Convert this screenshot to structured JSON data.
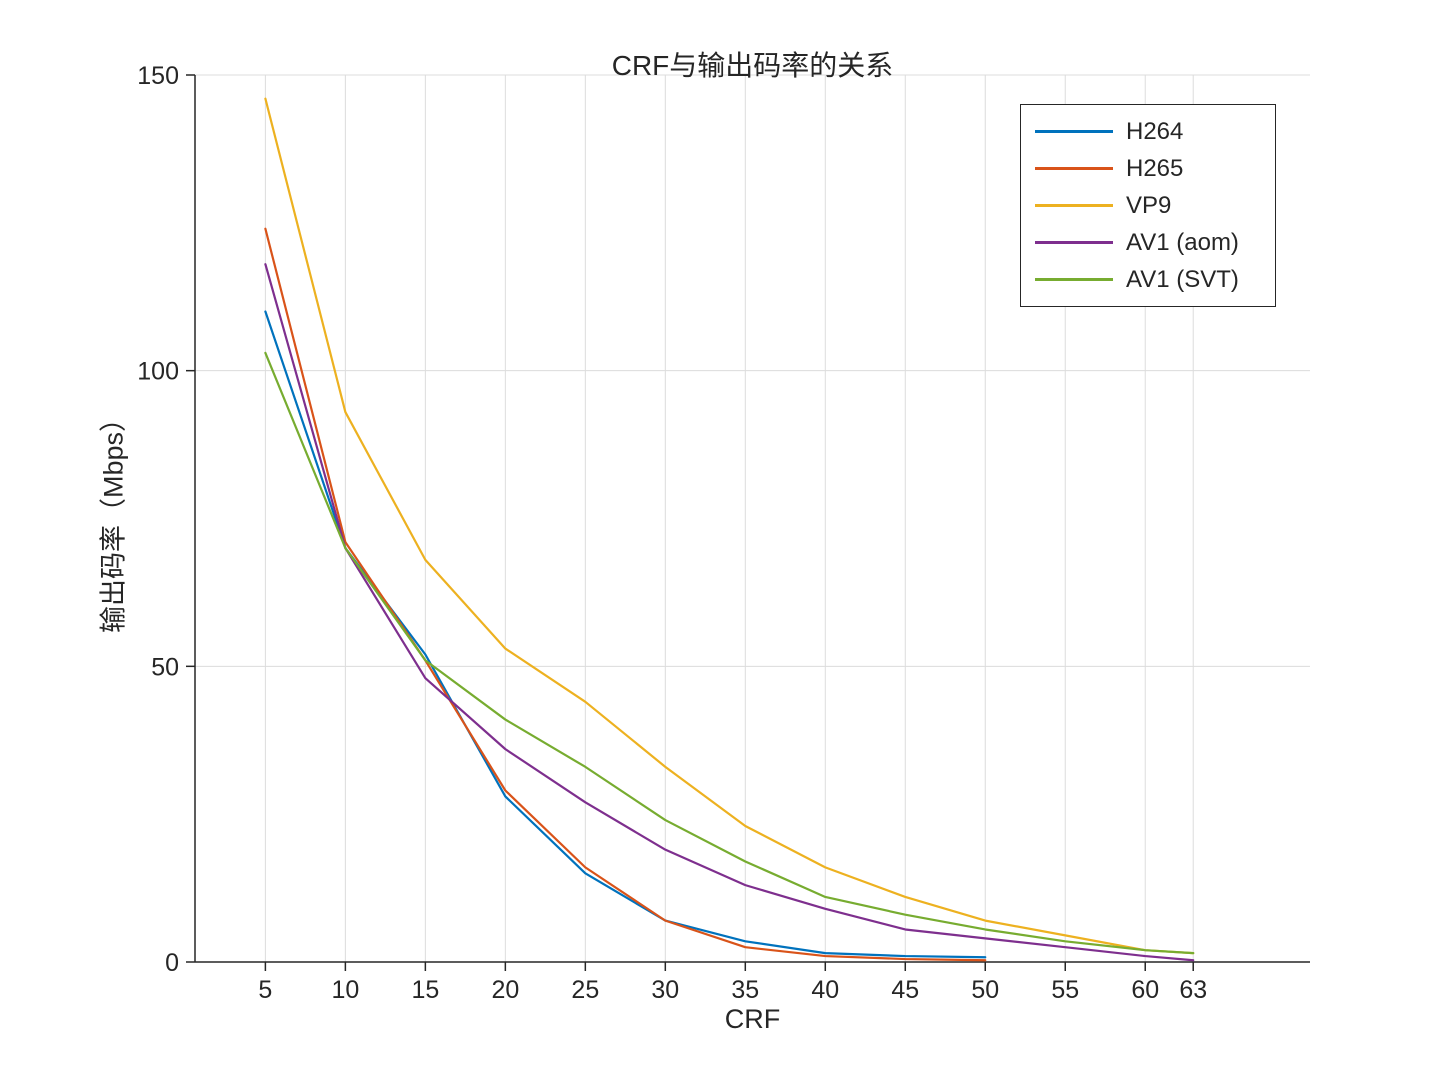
{
  "chart_data": {
    "type": "line",
    "title": "CRF与输出码率的关系",
    "xlabel": "CRF",
    "ylabel": "输出码率（Mbps）",
    "x": [
      5,
      10,
      15,
      20,
      25,
      30,
      35,
      40,
      45,
      50,
      55,
      60,
      63
    ],
    "xticks": [
      5,
      10,
      15,
      20,
      25,
      30,
      35,
      40,
      45,
      50,
      55,
      60,
      63
    ],
    "yticks": [
      0,
      50,
      100,
      150
    ],
    "xlim": [
      0.6,
      70.3
    ],
    "ylim": [
      0,
      150
    ],
    "grid": true,
    "legend_position": "top-right",
    "axis_color": "#262626",
    "grid_color": "#dcdcdc",
    "series": [
      {
        "name": "H264",
        "color": "#0072BD",
        "values": [
          110,
          70,
          52,
          28,
          15,
          7,
          3.5,
          1.5,
          1,
          0.8,
          null,
          null,
          null
        ]
      },
      {
        "name": "H265",
        "color": "#D95319",
        "values": [
          124,
          71,
          51,
          29,
          16,
          7,
          2.5,
          1,
          0.5,
          0.3,
          null,
          null,
          null
        ]
      },
      {
        "name": "VP9",
        "color": "#EDB120",
        "values": [
          146,
          93,
          68,
          53,
          44,
          33,
          23,
          16,
          11,
          7,
          4.5,
          2,
          1.5
        ]
      },
      {
        "name": "AV1 (aom)",
        "color": "#7E2F8E",
        "values": [
          118,
          70,
          48,
          36,
          27,
          19,
          13,
          9,
          5.5,
          4,
          2.5,
          1,
          0.3
        ]
      },
      {
        "name": "AV1 (SVT)",
        "color": "#77AC30",
        "values": [
          103,
          70,
          51,
          41,
          33,
          24,
          17,
          11,
          8,
          5.5,
          3.5,
          2,
          1.5
        ]
      }
    ]
  }
}
